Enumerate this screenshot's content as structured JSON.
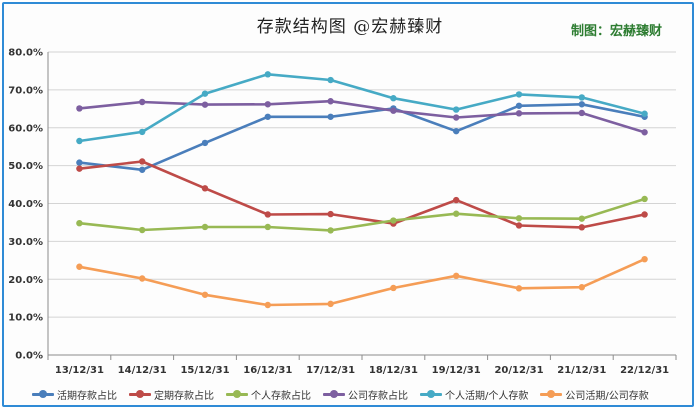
{
  "header": {
    "title": "存款结构图 @宏赫臻财",
    "credit": "制图：宏赫臻财"
  },
  "chart_data": {
    "type": "line",
    "title": "存款结构图 @宏赫臻财",
    "x": [
      "13/12/31",
      "14/12/31",
      "15/12/31",
      "16/12/31",
      "17/12/31",
      "18/12/31",
      "19/12/31",
      "20/12/31",
      "21/12/31",
      "22/12/31"
    ],
    "ylim": [
      0,
      80
    ],
    "yticks": [
      "0.0%",
      "10.0%",
      "20.0%",
      "30.0%",
      "40.0%",
      "50.0%",
      "60.0%",
      "70.0%",
      "80.0%"
    ],
    "grid": true,
    "legend_position": "bottom",
    "series": [
      {
        "name": "活期存款占比",
        "color": "#4a7ebb",
        "values": [
          50.8,
          48.9,
          56.0,
          62.9,
          62.9,
          65.1,
          59.1,
          65.8,
          66.2,
          62.9
        ]
      },
      {
        "name": "定期存款占比",
        "color": "#be4b48",
        "values": [
          49.2,
          51.1,
          44.0,
          37.1,
          37.2,
          34.7,
          40.9,
          34.2,
          33.7,
          37.1
        ]
      },
      {
        "name": "个人存款占比",
        "color": "#98b954",
        "values": [
          34.8,
          33.0,
          33.8,
          33.8,
          32.9,
          35.5,
          37.3,
          36.1,
          36.0,
          41.2
        ]
      },
      {
        "name": "公司存款占比",
        "color": "#7d5fa0",
        "values": [
          65.1,
          66.8,
          66.1,
          66.2,
          67.0,
          64.5,
          62.7,
          63.8,
          63.9,
          58.8
        ]
      },
      {
        "name": "个人活期/个人存款",
        "color": "#46aac5",
        "values": [
          56.5,
          58.9,
          69.0,
          74.1,
          72.6,
          67.8,
          64.8,
          68.8,
          68.0,
          63.7
        ]
      },
      {
        "name": "公司活期/公司存款",
        "color": "#f59d56",
        "values": [
          23.3,
          20.2,
          15.9,
          13.2,
          13.5,
          17.7,
          20.9,
          17.6,
          17.9,
          25.3
        ]
      }
    ]
  }
}
